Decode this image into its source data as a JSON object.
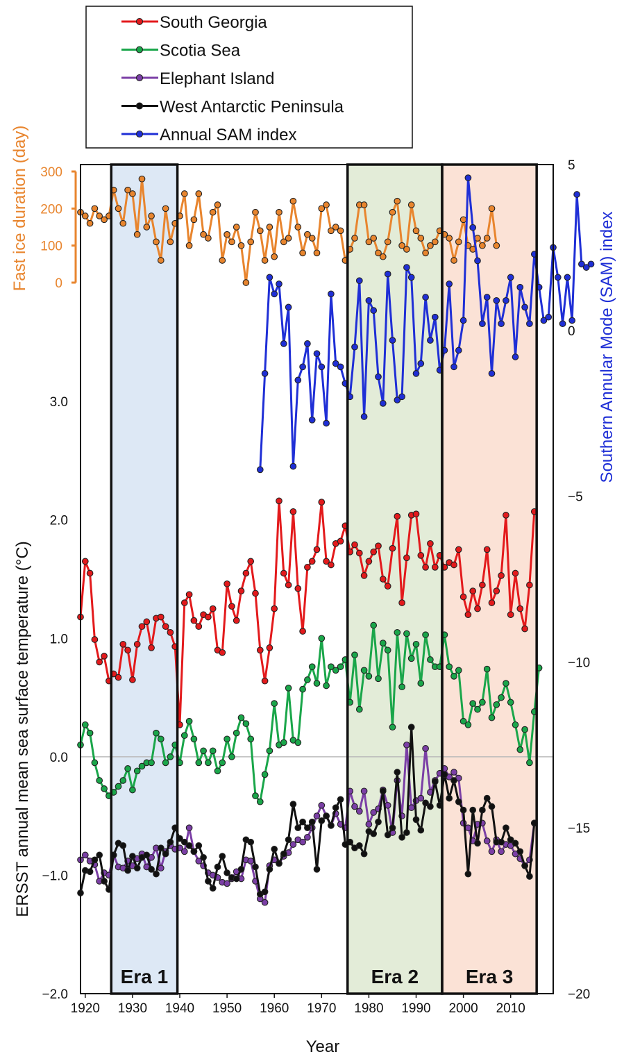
{
  "chart_data": {
    "type": "line",
    "xlabel": "Year",
    "xlim": [
      1919,
      2019
    ],
    "x_ticks": [
      "1920",
      "1930",
      "1940",
      "1950",
      "1960",
      "1970",
      "1980",
      "1990",
      "2000",
      "2010"
    ],
    "ylabel_left": "ERSST annual mean sea  surface temperature (°C)",
    "ylim_left": [
      -2.0,
      5.0
    ],
    "y_ticks_left": [
      "−2.0",
      "−1.0",
      "0.0",
      "1.0",
      "2.0",
      "3.0"
    ],
    "ylabel_fast_ice": "Fast ice duration (day)",
    "y_ticks_fast_ice": [
      "0",
      "100",
      "200",
      "300"
    ],
    "ylabel_right": "Southern Annular Mode (SAM) index",
    "ylim_right": [
      -20,
      5
    ],
    "y_ticks_right": [
      "−20",
      "−15",
      "−10",
      "−5",
      "0",
      "5"
    ],
    "eras": [
      {
        "label": "Era 1",
        "start": 1925.5,
        "end": 1939.5,
        "color": "#dde8f5"
      },
      {
        "label": "Era 2",
        "start": 1975.5,
        "end": 1995.5,
        "color": "#e3ecd8"
      },
      {
        "label": "Era 3",
        "start": 1995.5,
        "end": 2015.5,
        "color": "#fbe2d6"
      }
    ],
    "legend": {
      "position": "top",
      "entries": [
        {
          "label": "South Georgia",
          "color": "#e31a1c"
        },
        {
          "label": "Scotia Sea",
          "color": "#1aa64a"
        },
        {
          "label": "Elephant Island",
          "color": "#7b3fa6"
        },
        {
          "label": "West Antarctic Peninsula",
          "color": "#111111"
        },
        {
          "label": "Annual SAM index",
          "color": "#1f2fd6"
        }
      ]
    },
    "fast_ice": {
      "color": "#e8852e",
      "x_start": 1919,
      "values": [
        190,
        180,
        160,
        200,
        180,
        170,
        180,
        250,
        200,
        160,
        250,
        240,
        130,
        280,
        150,
        180,
        110,
        60,
        200,
        110,
        160,
        180,
        240,
        100,
        170,
        240,
        130,
        120,
        190,
        210,
        60,
        130,
        110,
        150,
        100,
        0,
        110,
        190,
        140,
        60,
        150,
        70,
        190,
        110,
        120,
        220,
        150,
        80,
        130,
        120,
        80,
        200,
        210,
        140,
        150,
        140,
        60,
        90,
        120,
        210,
        210,
        110,
        120,
        80,
        70,
        110,
        190,
        220,
        100,
        90,
        210,
        140,
        120,
        80,
        100,
        110,
        140,
        130,
        120,
        60,
        110,
        170,
        100,
        90,
        120,
        100,
        120,
        200,
        100
      ]
    },
    "sam": {
      "color": "#1f2fd6",
      "x_start": 1957,
      "values": [
        -4.2,
        -1.3,
        1.6,
        1.1,
        1.4,
        -0.4,
        0.7,
        -4.1,
        -1.5,
        -1.1,
        -0.4,
        -2.7,
        -0.7,
        -1.1,
        -2.8,
        1.1,
        -1.0,
        -1.1,
        -1.6,
        -2.0,
        -0.5,
        1.5,
        -2.6,
        0.9,
        0.6,
        -1.4,
        -2.2,
        1.7,
        -0.3,
        -2.1,
        -2.0,
        1.9,
        1.6,
        -1.3,
        -1.0,
        1.0,
        -0.3,
        0.4,
        -1.2,
        -0.6,
        1.4,
        -1.1,
        -0.6,
        0.3,
        4.6,
        3.1,
        2.1,
        0.2,
        1.0,
        -1.3,
        0.9,
        0.2,
        0.9,
        1.6,
        -0.8,
        1.3,
        0.7,
        0.2,
        2.3,
        1.3,
        0.3,
        0.4,
        2.5,
        1.6,
        0.2,
        1.6,
        0.3,
        4.1,
        2.0,
        1.9,
        2.0
      ]
    },
    "series": [
      {
        "name": "South Georgia",
        "color": "#e31a1c",
        "x_start": 1919,
        "values": [
          1.18,
          1.65,
          1.55,
          0.99,
          0.8,
          0.85,
          0.64,
          0.7,
          0.67,
          0.95,
          0.9,
          0.65,
          0.95,
          1.1,
          1.14,
          0.92,
          1.17,
          1.18,
          1.1,
          1.05,
          0.93,
          0.27,
          1.3,
          1.37,
          1.15,
          1.1,
          1.2,
          1.18,
          1.25,
          0.9,
          0.88,
          1.46,
          1.27,
          1.15,
          1.4,
          1.55,
          1.65,
          1.38,
          0.9,
          0.64,
          0.92,
          1.25,
          2.16,
          1.55,
          1.45,
          2.07,
          1.42,
          1.06,
          1.6,
          1.65,
          1.75,
          2.15,
          1.65,
          1.62,
          1.8,
          1.82,
          1.95,
          1.73,
          1.79,
          1.72,
          1.53,
          1.65,
          1.73,
          1.78,
          1.5,
          1.44,
          1.76,
          2.03,
          1.3,
          1.68,
          2.04,
          2.05,
          1.7,
          1.6,
          1.8,
          1.6,
          1.7,
          1.6,
          1.64,
          1.62,
          1.75,
          1.35,
          1.2,
          1.4,
          1.25,
          1.45,
          1.75,
          1.3,
          1.4,
          1.53,
          2.04,
          1.2,
          1.55,
          1.25,
          1.08,
          1.45,
          2.07
        ]
      },
      {
        "name": "Scotia Sea",
        "color": "#1aa64a",
        "x_start": 1919,
        "values": [
          0.1,
          0.27,
          0.2,
          -0.05,
          -0.2,
          -0.27,
          -0.33,
          -0.3,
          -0.25,
          -0.2,
          -0.1,
          -0.28,
          -0.12,
          -0.08,
          -0.05,
          -0.05,
          0.2,
          0.15,
          -0.05,
          0.0,
          0.1,
          -0.05,
          0.18,
          0.3,
          0.15,
          -0.05,
          0.05,
          -0.05,
          0.05,
          -0.12,
          -0.05,
          0.15,
          0.0,
          0.2,
          0.33,
          0.28,
          0.15,
          -0.33,
          -0.38,
          -0.15,
          0.05,
          0.45,
          0.1,
          0.12,
          0.58,
          0.14,
          0.12,
          0.57,
          0.65,
          0.76,
          0.62,
          1.0,
          0.6,
          0.76,
          0.73,
          0.76,
          0.82,
          0.46,
          0.86,
          0.4,
          0.73,
          0.68,
          1.11,
          0.66,
          0.96,
          0.9,
          0.25,
          1.05,
          0.59,
          1.04,
          0.83,
          0.95,
          0.62,
          1.03,
          0.82,
          0.76,
          0.76,
          1.03,
          0.76,
          0.68,
          0.73,
          0.3,
          0.27,
          0.45,
          0.4,
          0.46,
          0.74,
          0.33,
          0.44,
          0.5,
          0.62,
          0.46,
          0.27,
          0.06,
          0.23,
          -0.05,
          0.38,
          0.75
        ]
      },
      {
        "name": "Elephant Island",
        "color": "#7b3fa6",
        "x_start": 1919,
        "values": [
          -0.87,
          -0.83,
          -0.88,
          -0.91,
          -1.05,
          -0.98,
          -1.0,
          -0.83,
          -0.93,
          -0.94,
          -0.88,
          -0.92,
          -0.86,
          -0.82,
          -0.93,
          -0.85,
          -0.77,
          -0.94,
          -0.8,
          -0.75,
          -0.78,
          -0.77,
          -0.8,
          -0.6,
          -0.8,
          -0.88,
          -0.92,
          -0.98,
          -1.0,
          -1.02,
          -1.06,
          -1.07,
          -1.03,
          -0.97,
          -1.03,
          -0.87,
          -0.88,
          -1.05,
          -1.2,
          -1.23,
          -0.92,
          -0.87,
          -0.9,
          -0.84,
          -0.81,
          -0.74,
          -0.7,
          -0.72,
          -0.68,
          -0.6,
          -0.5,
          -0.41,
          -0.5,
          -0.58,
          -0.48,
          -0.57,
          -0.6,
          -0.29,
          -0.42,
          -0.46,
          -0.29,
          -0.57,
          -0.47,
          -0.44,
          -0.28,
          -0.41,
          -0.64,
          -0.2,
          -0.5,
          0.1,
          -0.43,
          -0.37,
          -0.35,
          0.07,
          -0.3,
          -0.2,
          -0.14,
          -0.1,
          -0.17,
          -0.13,
          -0.18,
          -0.56,
          -0.6,
          -0.71,
          -0.57,
          -0.56,
          -0.71,
          -0.8,
          -0.7,
          -0.8,
          -0.74,
          -0.75,
          -0.82,
          -0.86,
          -0.92,
          -0.87,
          -0.56
        ]
      },
      {
        "name": "West Antarctic Peninsula",
        "color": "#111111",
        "x_start": 1919,
        "values": [
          -1.15,
          -0.96,
          -0.97,
          -0.87,
          -0.83,
          -1.05,
          -1.12,
          -0.83,
          -0.73,
          -0.75,
          -0.96,
          -0.84,
          -0.94,
          -0.85,
          -0.83,
          -0.95,
          -0.99,
          -0.77,
          -0.82,
          -0.72,
          -0.6,
          -0.69,
          -0.72,
          -0.75,
          -0.8,
          -0.75,
          -0.85,
          -1.05,
          -1.11,
          -0.93,
          -0.84,
          -0.98,
          -1.02,
          -1.03,
          -0.95,
          -0.7,
          -0.72,
          -0.93,
          -1.16,
          -1.14,
          -0.95,
          -0.78,
          -0.9,
          -0.82,
          -0.7,
          -0.4,
          -0.6,
          -0.55,
          -0.6,
          -0.55,
          -0.95,
          -0.54,
          -0.5,
          -0.58,
          -0.43,
          -0.36,
          -0.74,
          -0.72,
          -0.77,
          -0.75,
          -0.82,
          -0.63,
          -0.65,
          -0.55,
          -0.29,
          -0.66,
          -0.6,
          -0.13,
          -0.68,
          -0.64,
          0.25,
          -0.53,
          -0.62,
          -0.39,
          -0.42,
          -0.21,
          -0.41,
          -0.15,
          -0.35,
          -0.2,
          -0.38,
          -0.45,
          -0.99,
          -0.45,
          -0.73,
          -0.45,
          -0.35,
          -0.42,
          -0.72,
          -0.72,
          -0.6,
          -0.7,
          -0.73,
          -0.8,
          -0.92,
          -1.01,
          -0.56
        ]
      }
    ]
  }
}
